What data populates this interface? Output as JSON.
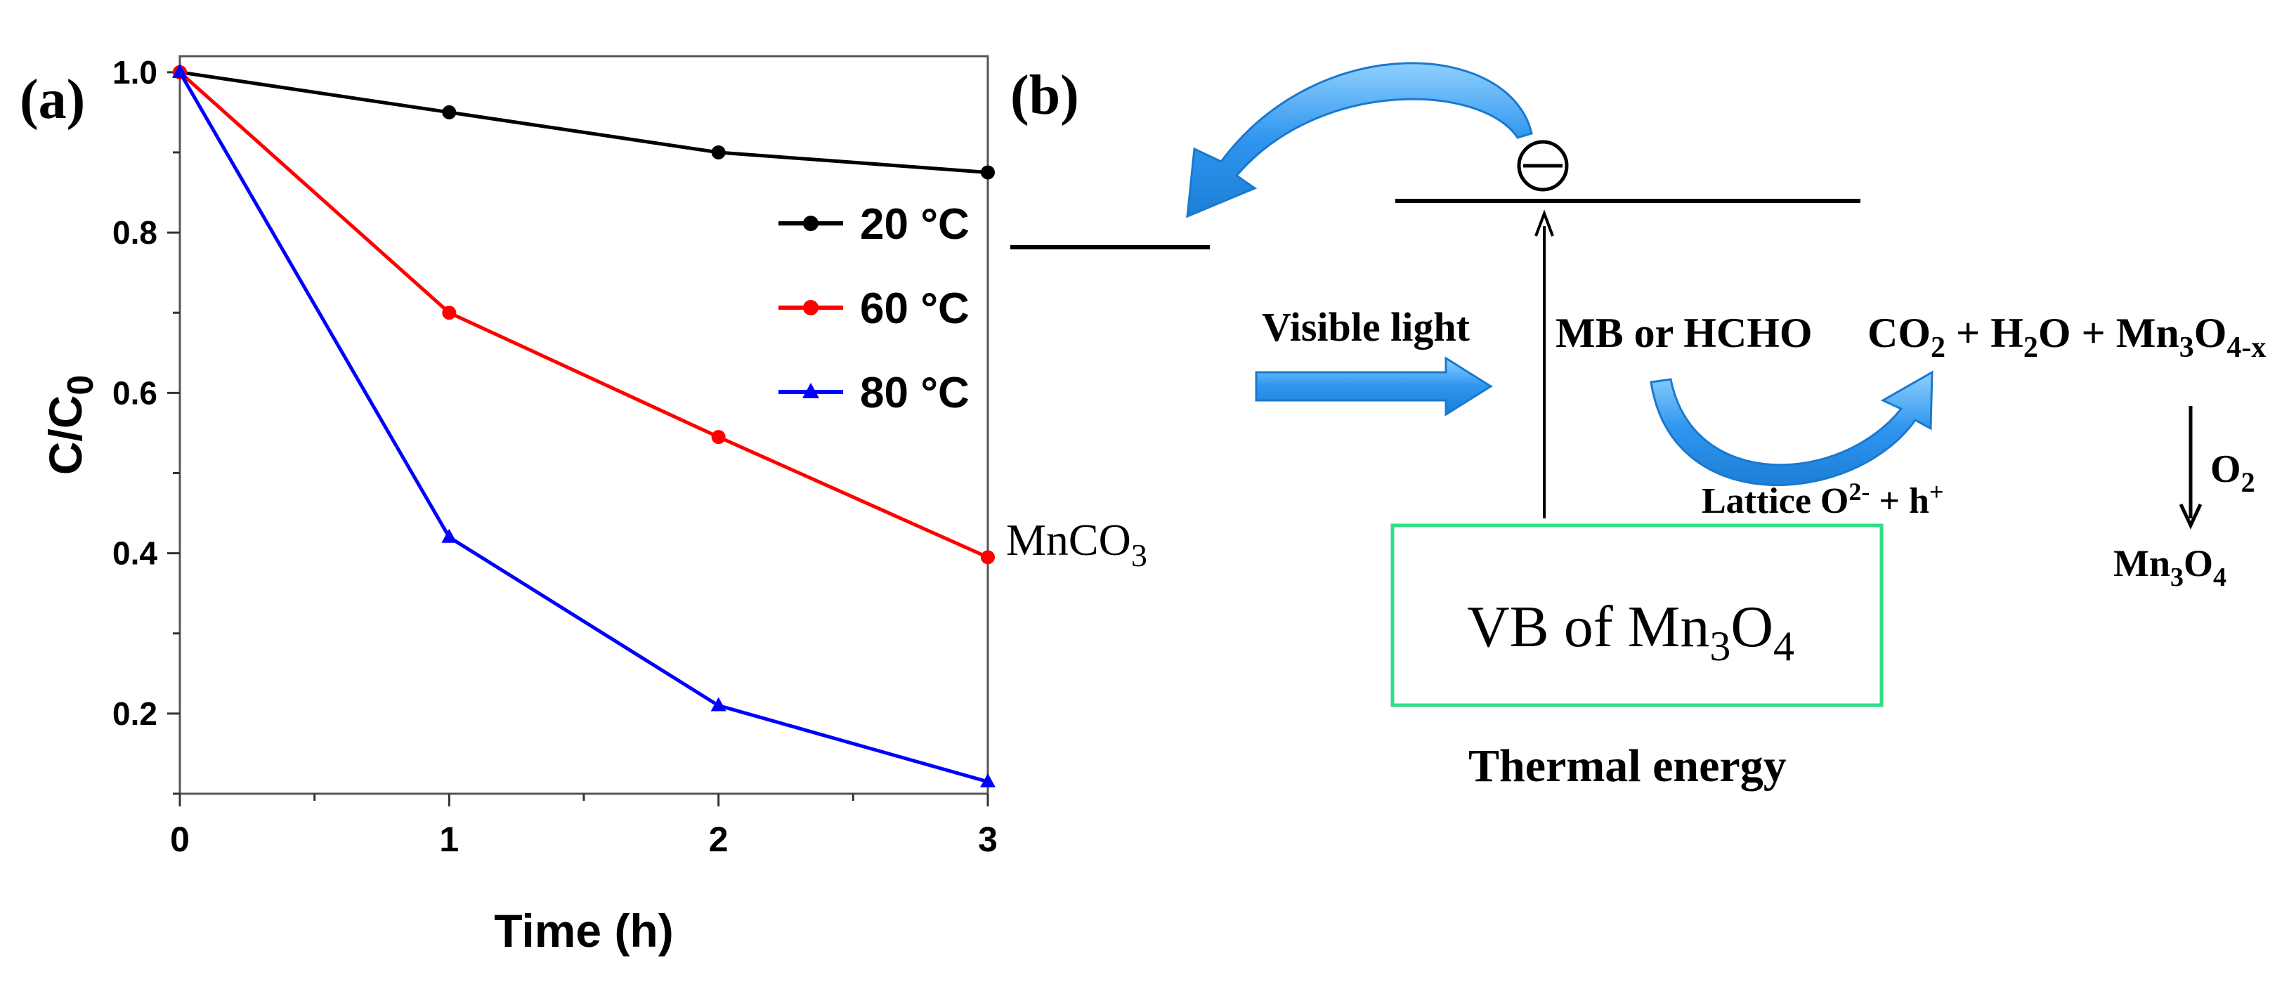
{
  "panel_a": {
    "label": "(a)",
    "chart_data": {
      "type": "line",
      "title": "",
      "xlabel": "Time (h)",
      "ylabel": "C/C",
      "ylabel_sub": "0",
      "xlim": [
        0,
        3
      ],
      "ylim": [
        0.1,
        1.02
      ],
      "x_ticks": [
        0,
        1,
        2,
        3
      ],
      "x_tick_labels": [
        "0",
        "1",
        "2",
        "3"
      ],
      "y_ticks": [
        0.2,
        0.4,
        0.6,
        0.8,
        1.0
      ],
      "y_tick_labels": [
        "0.2",
        "0.4",
        "0.6",
        "0.8",
        "1.0"
      ],
      "grid": false,
      "legend_position": "top-right",
      "series": [
        {
          "name": "20 °C",
          "temp": "20",
          "unit": "°C",
          "color": "#000000",
          "marker": "circle",
          "x": [
            0,
            1,
            2,
            3
          ],
          "values": [
            1.0,
            0.95,
            0.9,
            0.875
          ]
        },
        {
          "name": "60 °C",
          "temp": "60",
          "unit": "°C",
          "color": "#ff0000",
          "marker": "circle",
          "x": [
            0,
            1,
            2,
            3
          ],
          "values": [
            1.0,
            0.7,
            0.545,
            0.395
          ]
        },
        {
          "name": "80 °C",
          "temp": "80",
          "unit": "°C",
          "color": "#0000ff",
          "marker": "triangle",
          "x": [
            0,
            1,
            2,
            3
          ],
          "values": [
            1.0,
            0.42,
            0.21,
            0.115
          ]
        }
      ]
    }
  },
  "panel_b": {
    "label": "(b)",
    "electron_symbol": "⊖",
    "mnco3": {
      "base": "MnCO",
      "sub": "3"
    },
    "visible_light": "Visible light",
    "reactant": "MB or HCHO",
    "products": [
      {
        "base": "CO",
        "sub": "2"
      },
      {
        "base": " + H",
        "sub": "2"
      },
      {
        "base": "O + Mn",
        "sub": "3"
      },
      {
        "base": "O",
        "sub": "4-x"
      }
    ],
    "lattice": {
      "text": "Lattice O",
      "sup": "2-",
      "rest": " + h",
      "sup2": "+"
    },
    "o2": {
      "base": "O",
      "sub": "2"
    },
    "mn3o4": [
      {
        "base": "Mn",
        "sub": "3"
      },
      {
        "base": "O",
        "sub": "4"
      }
    ],
    "vb": [
      {
        "base": "VB  of Mn",
        "sub": "3"
      },
      {
        "base": "O",
        "sub": "4"
      }
    ],
    "thermal": "Thermal energy",
    "colors": {
      "arrow": "#3399ee",
      "arrow_light": "#8ed0ff",
      "box": "#33dd88"
    }
  }
}
